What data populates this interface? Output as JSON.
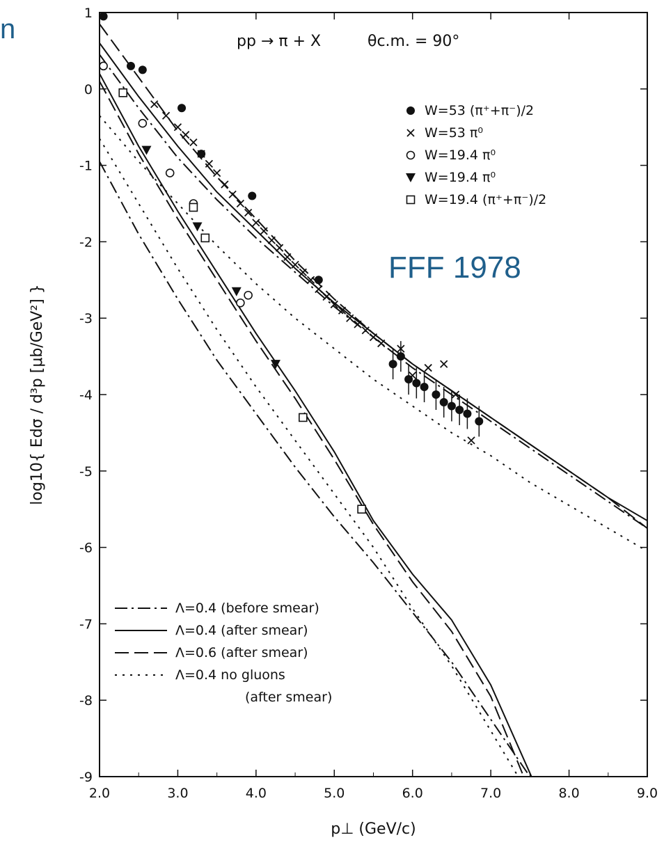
{
  "slide_corner_text": "n",
  "stamp_text": "FFF 1978",
  "chart_data": {
    "type": "scatter",
    "title": "pp → π + X",
    "subtitle": "θc.m. = 90°",
    "xlabel": "p⊥ (GeV/c)",
    "ylabel": "log10{ Edσ / d³p [μb/GeV²] }",
    "xlim": [
      2.0,
      9.0
    ],
    "ylim": [
      -9,
      1
    ],
    "xticks": [
      "2.0",
      "3.0",
      "4.0",
      "5.0",
      "6.0",
      "7.0",
      "8.0",
      "9.0"
    ],
    "yticks": [
      "1",
      "0",
      "-1",
      "-2",
      "-3",
      "-4",
      "-5",
      "-6",
      "-7",
      "-8",
      "-9"
    ],
    "grid": false,
    "point_series": [
      {
        "name": "W = 53 (π⁺+π⁻)/2",
        "marker": "filled-circle",
        "x": [
          2.05,
          2.4,
          2.55,
          3.05,
          3.3,
          3.95,
          4.8
        ],
        "y": [
          0.95,
          0.3,
          0.25,
          -0.25,
          -0.85,
          -1.4,
          -2.5
        ]
      },
      {
        "name": "W = 53 π⁰",
        "marker": "cross",
        "x": [
          2.7,
          2.85,
          3.0,
          3.1,
          3.2,
          3.3,
          3.4,
          3.5,
          3.6,
          3.7,
          3.8,
          3.9,
          4.0,
          4.1,
          4.2,
          4.3,
          4.4,
          4.5,
          4.6,
          4.7,
          4.8,
          4.9,
          5.0,
          5.1,
          5.2,
          5.3,
          5.4,
          5.5,
          5.6,
          5.85,
          6.0,
          6.2,
          6.4,
          6.55,
          6.75
        ],
        "y": [
          -0.2,
          -0.35,
          -0.5,
          -0.6,
          -0.7,
          -0.85,
          -0.98,
          -1.1,
          -1.25,
          -1.38,
          -1.5,
          -1.62,
          -1.75,
          -1.86,
          -1.98,
          -2.08,
          -2.2,
          -2.3,
          -2.4,
          -2.5,
          -2.62,
          -2.72,
          -2.82,
          -2.9,
          -3.0,
          -3.08,
          -3.16,
          -3.25,
          -3.33,
          -3.4,
          -3.75,
          -3.65,
          -3.6,
          -4.0,
          -4.6
        ]
      },
      {
        "name": "W = 19.4 π⁰",
        "marker": "open-circle",
        "x": [
          2.05,
          2.3,
          2.55,
          2.9,
          3.2,
          3.8,
          3.9
        ],
        "y": [
          0.3,
          -0.05,
          -0.45,
          -1.1,
          -1.5,
          -2.8,
          -2.7
        ]
      },
      {
        "name": "W = 19.4 π⁰",
        "marker": "filled-triangle",
        "x": [
          2.6,
          3.25,
          3.75,
          4.25
        ],
        "y": [
          -0.8,
          -1.8,
          -2.65,
          -3.6
        ]
      },
      {
        "name": "W = 19.4 (π⁺+π⁻)/2",
        "marker": "open-square",
        "x": [
          2.3,
          3.2,
          3.35,
          4.6,
          5.35
        ],
        "y": [
          -0.05,
          -1.55,
          -1.95,
          -4.3,
          -5.5
        ]
      },
      {
        "name": "",
        "marker": "filled-circle",
        "x": [
          5.75,
          5.85,
          5.95,
          6.05,
          6.15,
          6.3,
          6.4,
          6.5,
          6.6,
          6.7,
          6.85
        ],
        "y": [
          -3.6,
          -3.5,
          -3.8,
          -3.85,
          -3.9,
          -4.0,
          -4.1,
          -4.15,
          -4.2,
          -4.25,
          -4.35
        ]
      }
    ],
    "line_series": [
      {
        "name": "Λ=0.4 (before smear)",
        "style": "dashdot",
        "group": "W=53",
        "x": [
          2.0,
          2.5,
          3.0,
          3.5,
          4.0,
          4.5,
          5.0,
          5.5,
          6.0,
          6.5,
          7.0,
          7.5,
          8.0,
          8.5,
          9.0
        ],
        "y": [
          0.45,
          -0.25,
          -0.9,
          -1.45,
          -1.95,
          -2.4,
          -2.85,
          -3.25,
          -3.65,
          -4.0,
          -4.35,
          -4.7,
          -5.05,
          -5.4,
          -5.75
        ]
      },
      {
        "name": "Λ=0.4 (after smear)",
        "style": "solid",
        "group": "W=53",
        "x": [
          2.0,
          2.5,
          3.0,
          3.5,
          4.0,
          4.5,
          5.0,
          5.5,
          6.0,
          6.5,
          7.0,
          7.5,
          8.0,
          8.5,
          9.0
        ],
        "y": [
          0.6,
          -0.1,
          -0.75,
          -1.35,
          -1.85,
          -2.35,
          -2.8,
          -3.2,
          -3.6,
          -3.95,
          -4.3,
          -4.65,
          -5.0,
          -5.35,
          -5.65
        ]
      },
      {
        "name": "Λ=0.6 (after smear)",
        "style": "dashed",
        "group": "W=53",
        "x": [
          2.0,
          2.5,
          3.0,
          3.5,
          4.0,
          4.5,
          5.0,
          5.5,
          6.0,
          6.5,
          7.0,
          7.5,
          8.0,
          8.5,
          9.0
        ],
        "y": [
          0.85,
          0.15,
          -0.55,
          -1.15,
          -1.7,
          -2.25,
          -2.75,
          -3.2,
          -3.6,
          -3.95,
          -4.3,
          -4.65,
          -5.0,
          -5.35,
          -5.75
        ]
      },
      {
        "name": "Λ=0.4 no gluons (after smear)",
        "style": "dotted",
        "group": "W=53",
        "x": [
          2.0,
          2.5,
          3.0,
          3.5,
          4.0,
          4.5,
          5.0,
          5.5,
          6.0,
          6.5,
          7.0,
          7.5,
          8.0,
          8.5,
          9.0
        ],
        "y": [
          -0.35,
          -0.95,
          -1.5,
          -2.05,
          -2.55,
          -3.0,
          -3.4,
          -3.8,
          -4.15,
          -4.5,
          -4.8,
          -5.15,
          -5.45,
          -5.75,
          -6.05
        ]
      },
      {
        "name": "Λ=0.4 (before smear)",
        "style": "dashdot",
        "group": "W=19.4",
        "x": [
          2.0,
          2.5,
          3.0,
          3.5,
          4.0,
          4.5,
          5.0,
          5.5,
          6.0,
          6.5,
          7.0,
          7.5
        ],
        "y": [
          -0.95,
          -1.9,
          -2.75,
          -3.55,
          -4.25,
          -4.95,
          -5.6,
          -6.2,
          -6.85,
          -7.5,
          -8.25,
          -9.0
        ]
      },
      {
        "name": "Λ=0.4 (after smear)",
        "style": "solid",
        "group": "W=19.4",
        "x": [
          2.0,
          2.5,
          3.0,
          3.5,
          4.0,
          4.5,
          5.0,
          5.5,
          6.0,
          6.5,
          7.0,
          7.52
        ],
        "y": [
          0.2,
          -0.75,
          -1.6,
          -2.4,
          -3.2,
          -3.95,
          -4.75,
          -5.65,
          -6.35,
          -6.95,
          -7.8,
          -9.0
        ]
      },
      {
        "name": "Λ=0.6 (after smear)",
        "style": "dashed",
        "group": "W=19.4",
        "x": [
          2.0,
          2.5,
          3.0,
          3.5,
          4.0,
          4.5,
          5.0,
          5.5,
          6.0,
          6.5,
          7.0,
          7.42
        ],
        "y": [
          0.1,
          -0.85,
          -1.7,
          -2.5,
          -3.3,
          -4.05,
          -4.85,
          -5.7,
          -6.45,
          -7.1,
          -7.95,
          -9.0
        ]
      },
      {
        "name": "Λ=0.4 no gluons (after smear)",
        "style": "dotted",
        "group": "W=19.4",
        "x": [
          2.0,
          2.5,
          3.0,
          3.5,
          4.0,
          4.5,
          5.0,
          5.5,
          6.0,
          6.5,
          7.0,
          7.35
        ],
        "y": [
          -0.65,
          -1.5,
          -2.35,
          -3.15,
          -3.9,
          -4.6,
          -5.3,
          -6.0,
          -6.8,
          -7.55,
          -8.4,
          -9.0
        ]
      }
    ],
    "legend": {
      "points_position": "top-right",
      "points": [
        {
          "marker": "filled-circle",
          "label": "W=53 (π⁺+π⁻)/2"
        },
        {
          "marker": "cross",
          "label": "W=53 π⁰"
        },
        {
          "marker": "open-circle",
          "label": "W=19.4 π⁰"
        },
        {
          "marker": "filled-triangle",
          "label": "W=19.4 π⁰"
        },
        {
          "marker": "open-square",
          "label": "W=19.4 (π⁺+π⁻)/2"
        }
      ],
      "lines_position": "bottom-left",
      "lines": [
        {
          "style": "dashdot",
          "label": "Λ=0.4 (before smear)"
        },
        {
          "style": "solid",
          "label": "Λ=0.4 (after smear)"
        },
        {
          "style": "dashed",
          "label": "Λ=0.6 (after smear)"
        },
        {
          "style": "dotted",
          "label": "Λ=0.4 no gluons"
        }
      ],
      "lines_note": "(after smear)"
    }
  }
}
